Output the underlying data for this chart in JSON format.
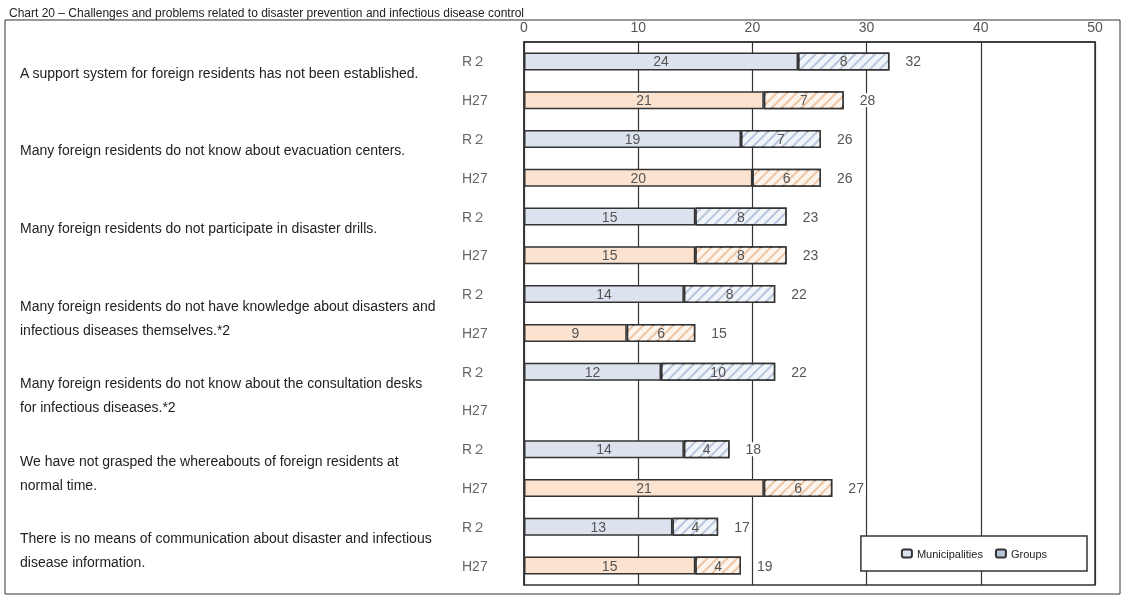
{
  "chart_data": {
    "type": "bar",
    "orientation": "horizontal",
    "stacked": true,
    "title": "Chart 20 – Challenges and problems related to disaster prevention and infectious disease control",
    "categories": [
      "R２",
      "H27",
      "R２",
      "H27",
      "R２",
      "H27",
      "R２",
      "H27",
      "R２",
      "H27",
      "R２",
      "H27",
      "R２",
      "H27"
    ],
    "series": [
      {
        "name": "Municipalities",
        "color": "#dce3ee",
        "colors": [
          "#dce3ee",
          "#fbe3d0",
          "#dce3ee",
          "#fbe3d0",
          "#dce3ee",
          "#fbe3d0",
          "#dce3ee",
          "#fbe3d0",
          "#dce3ee",
          "#fbe3d0",
          "#dce3ee",
          "#fbe3d0",
          "#dce3ee",
          "#fbe3d0"
        ],
        "values": [
          24,
          21,
          19,
          20,
          15,
          15,
          14,
          9,
          12,
          null,
          14,
          21,
          13,
          15
        ]
      },
      {
        "name": "Groups",
        "color": "#b8c6dc",
        "colors": [
          "#b8c6dc",
          "#efc6a4",
          "#b8c6dc",
          "#efc6a4",
          "#b8c6dc",
          "#efc6a4",
          "#b8c6dc",
          "#efc6a4",
          "#b8c6dc",
          "#efc6a4",
          "#b8c6dc",
          "#efc6a4",
          "#b8c6dc",
          "#efc6a4"
        ],
        "values": [
          8,
          7,
          7,
          6,
          8,
          8,
          8,
          6,
          10,
          null,
          4,
          6,
          4,
          4
        ]
      }
    ],
    "totals": [
      "32",
      "28",
      "26",
      "26",
      "23",
      "23",
      "22",
      "15",
      "22",
      null,
      "18",
      "27",
      "17",
      "19"
    ],
    "data_labels": true,
    "xlim": [
      0,
      50
    ],
    "xticks": [
      0,
      10,
      20,
      30,
      40,
      50
    ],
    "grid": "x",
    "legend": "bottom right",
    "annotations": [
      "A support system for foreign residents has not been established.",
      "Many foreign residents do not know about evacuation centers.",
      "Many foreign residents do not participate in disaster drills.",
      "Many foreign residents do not have knowledge about disasters and infectious diseases themselves.*2",
      "Many foreign residents do not know about the consultation desks for infectious diseases.*2",
      "We have not grasped the whereabouts of foreign residents at normal time.",
      "There is no means of communication about disaster and infectious disease information."
    ]
  }
}
